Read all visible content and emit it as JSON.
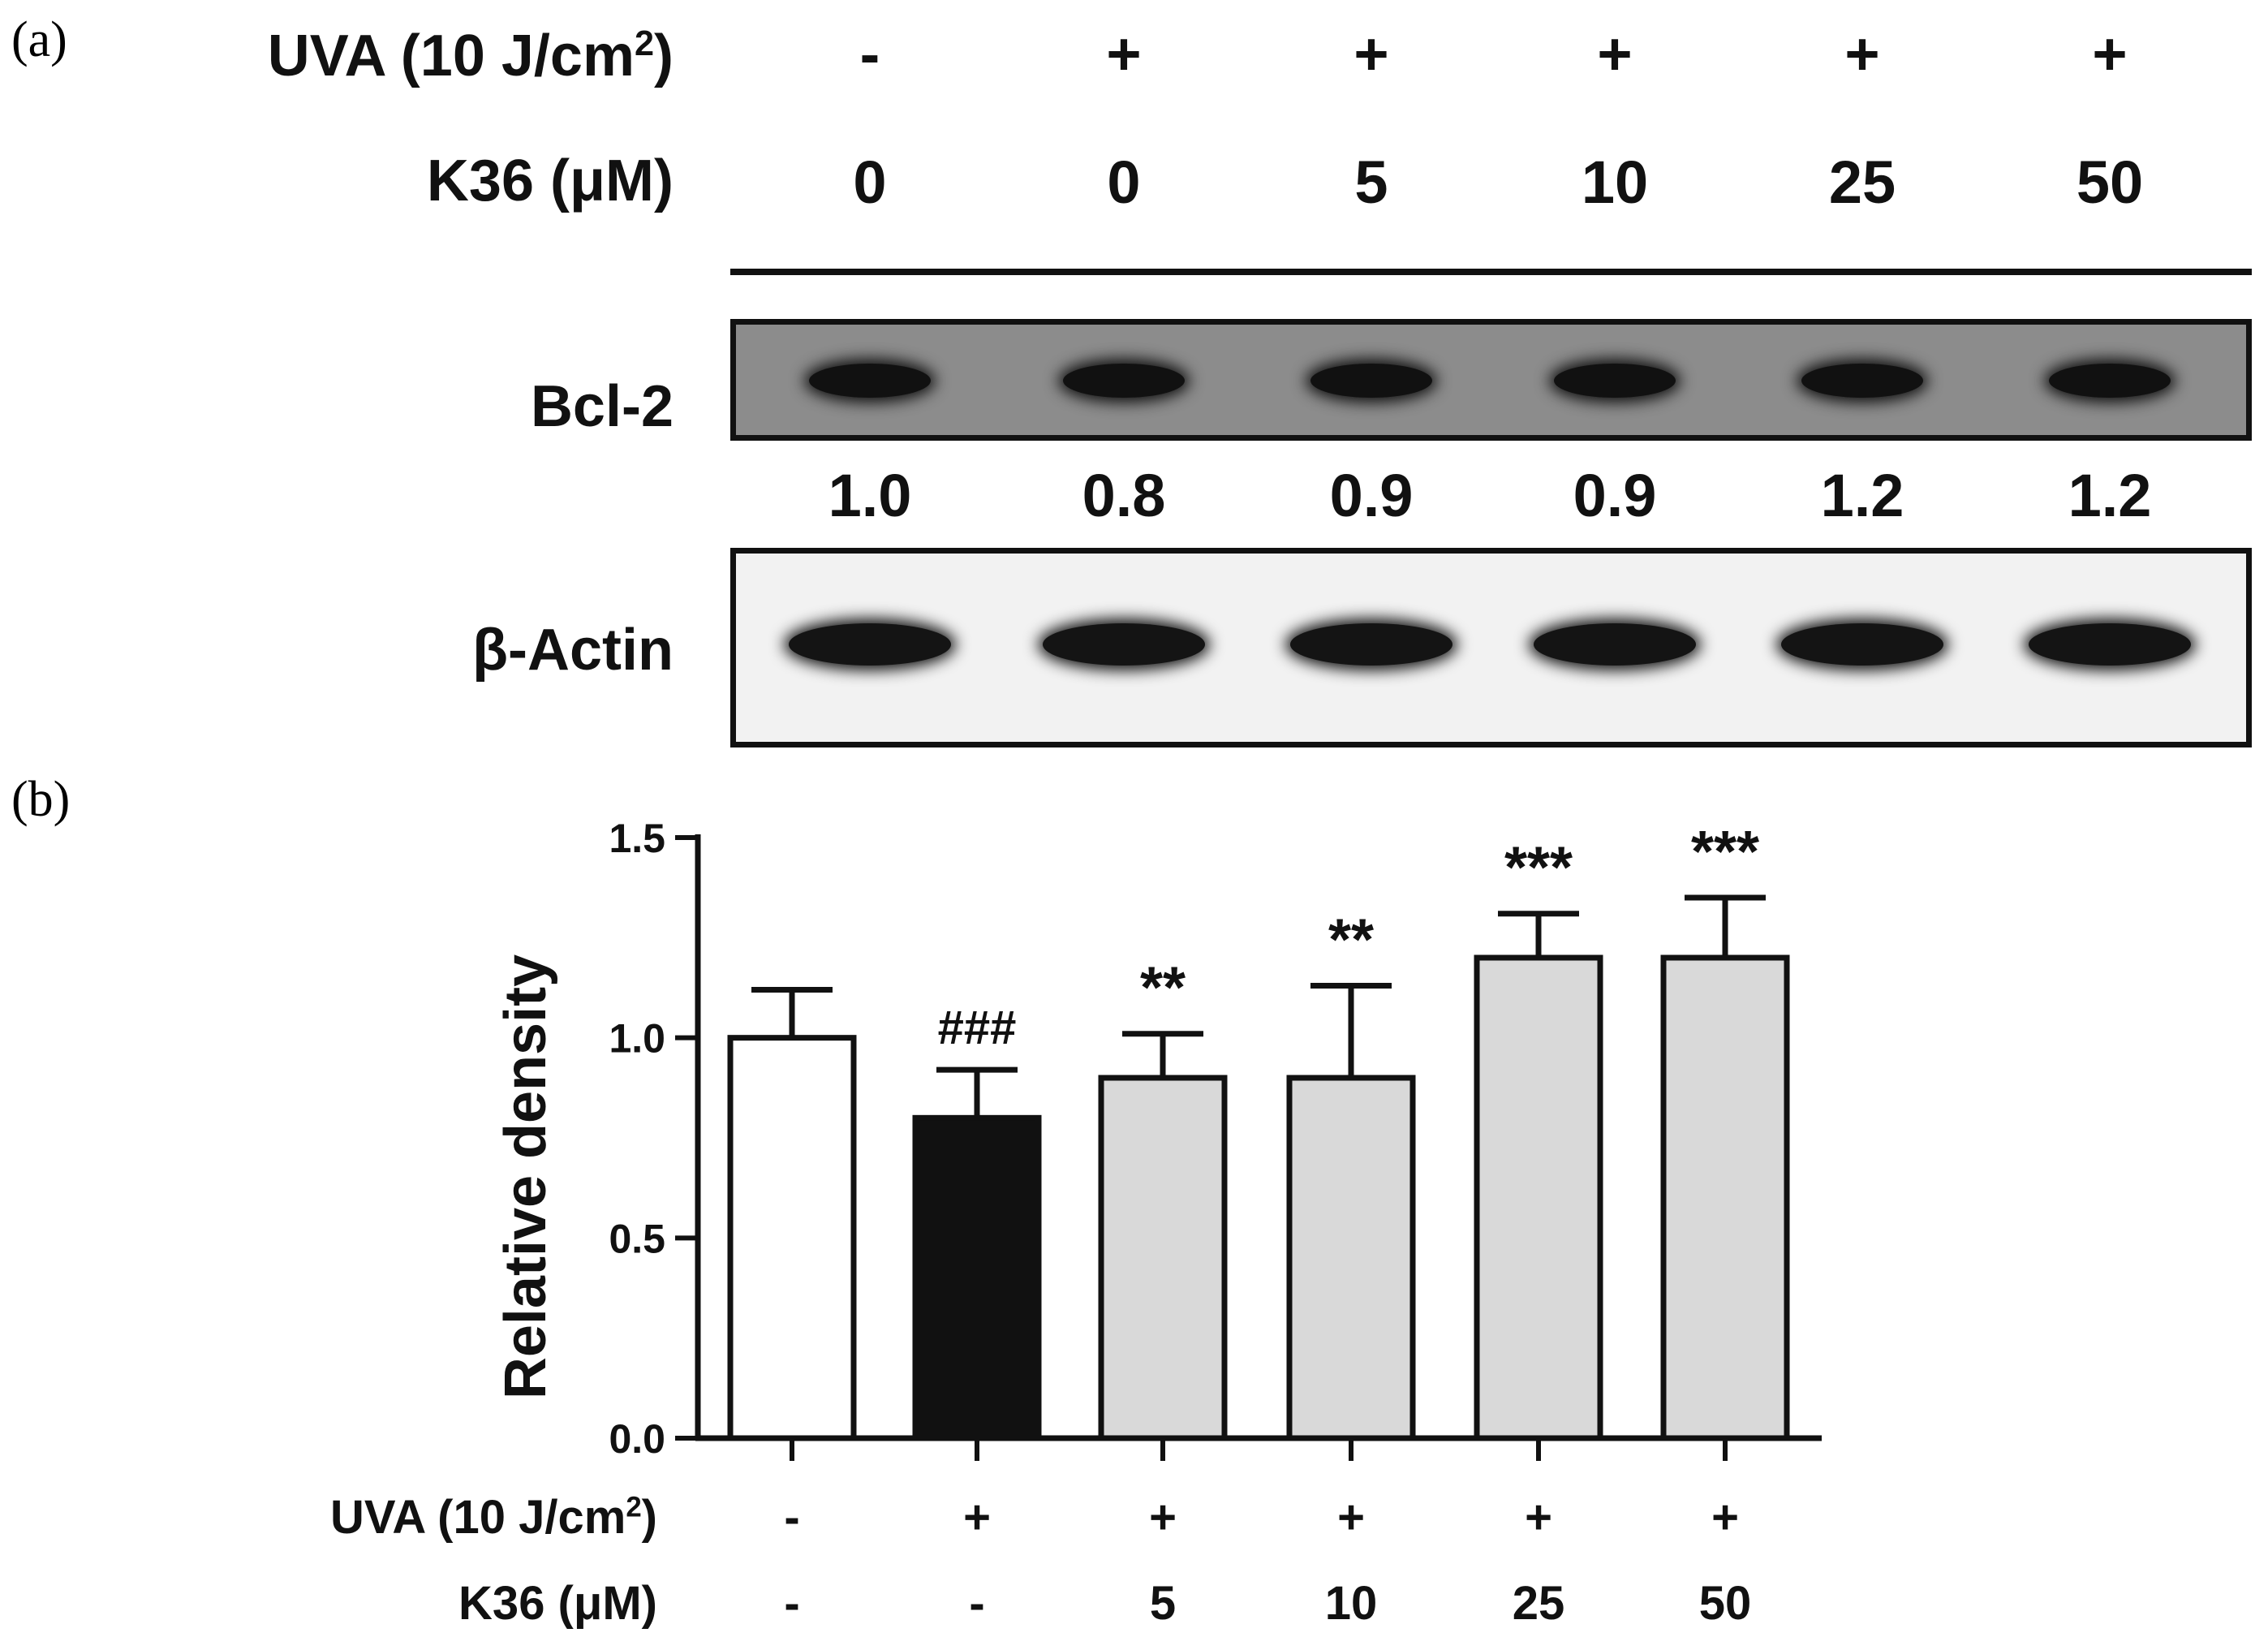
{
  "panel_a": {
    "label": "(a)",
    "uva_label": "UVA (10 J/cm",
    "uva_sup": "2",
    "uva_close": ")",
    "k36_label": "K36 (μM)",
    "uva_values": [
      "-",
      "+",
      "+",
      "+",
      "+",
      "+"
    ],
    "k36_values": [
      "0",
      "0",
      "5",
      "10",
      "25",
      "50"
    ],
    "bcl2_label": "Bcl-2",
    "bcl2_quant": [
      "1.0",
      "0.8",
      "0.9",
      "0.9",
      "1.2",
      "1.2"
    ],
    "actin_label": "β-Actin"
  },
  "panel_b": {
    "label": "(b)",
    "uva_label": "UVA (10 J/cm",
    "uva_sup": "2",
    "uva_close": ")",
    "k36_label": "K36 (μM)",
    "uva_values": [
      "-",
      "+",
      "+",
      "+",
      "+",
      "+"
    ],
    "k36_values": [
      "-",
      "-",
      "5",
      "10",
      "25",
      "50"
    ]
  },
  "chart_data": {
    "type": "bar",
    "ylabel": "Relative density",
    "ylim": [
      0,
      1.5
    ],
    "yticks": [
      "0.0",
      "0.5",
      "1.0",
      "1.5"
    ],
    "grid": false,
    "values": [
      1.0,
      0.8,
      0.9,
      0.9,
      1.2,
      1.2
    ],
    "errors": [
      0.12,
      0.12,
      0.11,
      0.23,
      0.11,
      0.15
    ],
    "annotations": [
      "",
      "###",
      "**",
      "**",
      "***",
      "***"
    ],
    "bar_colors": [
      "#ffffff",
      "#111111",
      "#d9d9d9",
      "#d9d9d9",
      "#d9d9d9",
      "#d9d9d9"
    ]
  }
}
